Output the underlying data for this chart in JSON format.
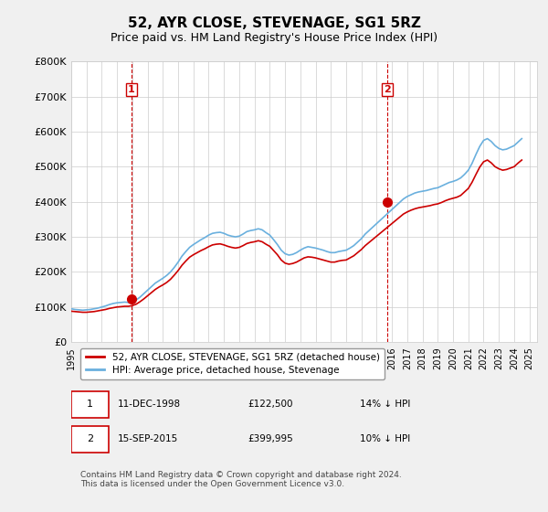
{
  "title": "52, AYR CLOSE, STEVENAGE, SG1 5RZ",
  "subtitle": "Price paid vs. HM Land Registry's House Price Index (HPI)",
  "ylabel_ticks": [
    "£0",
    "£100K",
    "£200K",
    "£300K",
    "£400K",
    "£500K",
    "£600K",
    "£700K",
    "£800K"
  ],
  "ylim": [
    0,
    800000
  ],
  "xlim_start": 1995.0,
  "xlim_end": 2025.5,
  "background_color": "#f0f0f0",
  "plot_bg_color": "#ffffff",
  "grid_color": "#cccccc",
  "sale1_x": 1998.94,
  "sale1_y": 122500,
  "sale1_label": "1",
  "sale2_x": 2015.71,
  "sale2_y": 399995,
  "sale2_label": "2",
  "marker1_vline_x": 1998.94,
  "marker2_vline_x": 2015.71,
  "hpi_color": "#6ab0de",
  "price_color": "#cc0000",
  "legend_entry1": "52, AYR CLOSE, STEVENAGE, SG1 5RZ (detached house)",
  "legend_entry2": "HPI: Average price, detached house, Stevenage",
  "annot1_date": "11-DEC-1998",
  "annot1_price": "£122,500",
  "annot1_hpi": "14% ↓ HPI",
  "annot2_date": "15-SEP-2015",
  "annot2_price": "£399,995",
  "annot2_hpi": "10% ↓ HPI",
  "footer": "Contains HM Land Registry data © Crown copyright and database right 2024.\nThis data is licensed under the Open Government Licence v3.0.",
  "hpi_data_x": [
    1995.0,
    1995.25,
    1995.5,
    1995.75,
    1996.0,
    1996.25,
    1996.5,
    1996.75,
    1997.0,
    1997.25,
    1997.5,
    1997.75,
    1998.0,
    1998.25,
    1998.5,
    1998.75,
    1999.0,
    1999.25,
    1999.5,
    1999.75,
    2000.0,
    2000.25,
    2000.5,
    2000.75,
    2001.0,
    2001.25,
    2001.5,
    2001.75,
    2002.0,
    2002.25,
    2002.5,
    2002.75,
    2003.0,
    2003.25,
    2003.5,
    2003.75,
    2004.0,
    2004.25,
    2004.5,
    2004.75,
    2005.0,
    2005.25,
    2005.5,
    2005.75,
    2006.0,
    2006.25,
    2006.5,
    2006.75,
    2007.0,
    2007.25,
    2007.5,
    2007.75,
    2008.0,
    2008.25,
    2008.5,
    2008.75,
    2009.0,
    2009.25,
    2009.5,
    2009.75,
    2010.0,
    2010.25,
    2010.5,
    2010.75,
    2011.0,
    2011.25,
    2011.5,
    2011.75,
    2012.0,
    2012.25,
    2012.5,
    2012.75,
    2013.0,
    2013.25,
    2013.5,
    2013.75,
    2014.0,
    2014.25,
    2014.5,
    2014.75,
    2015.0,
    2015.25,
    2015.5,
    2015.75,
    2016.0,
    2016.25,
    2016.5,
    2016.75,
    2017.0,
    2017.25,
    2017.5,
    2017.75,
    2018.0,
    2018.25,
    2018.5,
    2018.75,
    2019.0,
    2019.25,
    2019.5,
    2019.75,
    2020.0,
    2020.25,
    2020.5,
    2020.75,
    2021.0,
    2021.25,
    2021.5,
    2021.75,
    2022.0,
    2022.25,
    2022.5,
    2022.75,
    2023.0,
    2023.25,
    2023.5,
    2023.75,
    2024.0,
    2024.25,
    2024.5
  ],
  "hpi_data_y": [
    95000,
    93000,
    92000,
    91000,
    92000,
    93000,
    95000,
    97000,
    100000,
    103000,
    107000,
    110000,
    112000,
    113000,
    114000,
    113000,
    115000,
    120000,
    128000,
    138000,
    148000,
    158000,
    168000,
    175000,
    182000,
    190000,
    200000,
    213000,
    228000,
    245000,
    258000,
    270000,
    278000,
    285000,
    292000,
    298000,
    305000,
    310000,
    312000,
    313000,
    310000,
    305000,
    302000,
    300000,
    302000,
    308000,
    315000,
    318000,
    320000,
    323000,
    320000,
    312000,
    305000,
    292000,
    278000,
    262000,
    252000,
    248000,
    250000,
    255000,
    262000,
    268000,
    272000,
    270000,
    268000,
    265000,
    262000,
    258000,
    255000,
    255000,
    258000,
    260000,
    262000,
    268000,
    275000,
    285000,
    295000,
    308000,
    318000,
    328000,
    338000,
    348000,
    358000,
    368000,
    378000,
    388000,
    398000,
    408000,
    415000,
    420000,
    425000,
    428000,
    430000,
    432000,
    435000,
    438000,
    440000,
    445000,
    450000,
    455000,
    458000,
    462000,
    468000,
    478000,
    490000,
    510000,
    535000,
    558000,
    575000,
    580000,
    572000,
    560000,
    552000,
    548000,
    550000,
    555000,
    560000,
    570000,
    580000
  ],
  "price_data_x": [
    1995.0,
    1995.25,
    1995.5,
    1995.75,
    1996.0,
    1996.25,
    1996.5,
    1996.75,
    1997.0,
    1997.25,
    1997.5,
    1997.75,
    1998.0,
    1998.25,
    1998.5,
    1998.75,
    1999.0,
    1999.25,
    1999.5,
    1999.75,
    2000.0,
    2000.25,
    2000.5,
    2000.75,
    2001.0,
    2001.25,
    2001.5,
    2001.75,
    2002.0,
    2002.25,
    2002.5,
    2002.75,
    2003.0,
    2003.25,
    2003.5,
    2003.75,
    2004.0,
    2004.25,
    2004.5,
    2004.75,
    2005.0,
    2005.25,
    2005.5,
    2005.75,
    2006.0,
    2006.25,
    2006.5,
    2006.75,
    2007.0,
    2007.25,
    2007.5,
    2007.75,
    2008.0,
    2008.25,
    2008.5,
    2008.75,
    2009.0,
    2009.25,
    2009.5,
    2009.75,
    2010.0,
    2010.25,
    2010.5,
    2010.75,
    2011.0,
    2011.25,
    2011.5,
    2011.75,
    2012.0,
    2012.25,
    2012.5,
    2012.75,
    2013.0,
    2013.25,
    2013.5,
    2013.75,
    2014.0,
    2014.25,
    2014.5,
    2014.75,
    2015.0,
    2015.25,
    2015.5,
    2015.75,
    2016.0,
    2016.25,
    2016.5,
    2016.75,
    2017.0,
    2017.25,
    2017.5,
    2017.75,
    2018.0,
    2018.25,
    2018.5,
    2018.75,
    2019.0,
    2019.25,
    2019.5,
    2019.75,
    2020.0,
    2020.25,
    2020.5,
    2020.75,
    2021.0,
    2021.25,
    2021.5,
    2021.75,
    2022.0,
    2022.25,
    2022.5,
    2022.75,
    2023.0,
    2023.25,
    2023.5,
    2023.75,
    2024.0,
    2024.25,
    2024.5
  ],
  "price_data_y": [
    88000,
    87000,
    86000,
    85000,
    85000,
    86000,
    87000,
    89000,
    91000,
    93000,
    96000,
    98000,
    100000,
    101000,
    102000,
    102000,
    104000,
    108000,
    115000,
    123000,
    132000,
    141000,
    150000,
    157000,
    163000,
    170000,
    179000,
    191000,
    204000,
    219000,
    231000,
    242000,
    249000,
    255000,
    261000,
    266000,
    272000,
    277000,
    279000,
    280000,
    277000,
    273000,
    270000,
    268000,
    270000,
    275000,
    281000,
    284000,
    286000,
    289000,
    286000,
    279000,
    273000,
    261000,
    249000,
    234000,
    225000,
    222000,
    224000,
    228000,
    234000,
    240000,
    243000,
    242000,
    240000,
    237000,
    234000,
    231000,
    228000,
    228000,
    231000,
    233000,
    234000,
    240000,
    246000,
    255000,
    264000,
    275000,
    284000,
    293000,
    302000,
    311000,
    320000,
    329000,
    338000,
    347000,
    356000,
    365000,
    371000,
    376000,
    380000,
    383000,
    385000,
    387000,
    389000,
    392000,
    394000,
    398000,
    403000,
    407000,
    410000,
    413000,
    418000,
    428000,
    438000,
    456000,
    478000,
    499000,
    514000,
    519000,
    511000,
    500000,
    494000,
    490000,
    492000,
    496000,
    500000,
    510000,
    519000
  ]
}
